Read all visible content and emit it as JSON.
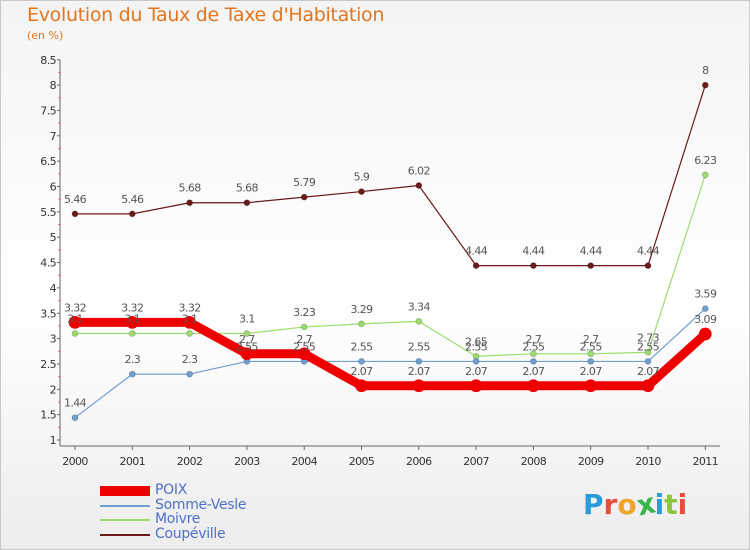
{
  "title": "Evolution du Taux de Taxe d'Habitation",
  "subtitle": "(en %)",
  "logo": {
    "text": "Proxiti",
    "letter_colors": [
      "#2a9ad8",
      "#e84c3d",
      "#f0a42a",
      "#3cb54a",
      "#2a9ad8",
      "#8cc63e",
      "#e84c3d"
    ]
  },
  "chart_data": {
    "type": "line",
    "title": "Evolution du Taux de Taxe d'Habitation",
    "subtitle": "(en %)",
    "x": [
      "2000",
      "2001",
      "2002",
      "2003",
      "2004",
      "2005",
      "2006",
      "2007",
      "2008",
      "2009",
      "2010",
      "2011"
    ],
    "yticks": [
      1,
      1.5,
      2,
      2.5,
      3,
      3.5,
      4,
      4.5,
      5,
      5.5,
      6,
      6.5,
      7,
      7.5,
      8,
      8.5
    ],
    "ylim": [
      1,
      8.5
    ],
    "grid": false,
    "legend_position": "bottom-left",
    "series": [
      {
        "name": "POIX",
        "color": "#ee0000",
        "values": [
          3.32,
          3.32,
          3.32,
          2.7,
          2.7,
          2.07,
          2.07,
          2.07,
          2.07,
          2.07,
          2.07,
          3.09
        ],
        "labels": [
          "3.32",
          "3.32",
          "3.32",
          "2.7",
          "2.7",
          "2.07",
          "2.07",
          "2.07",
          "2.07",
          "2.07",
          "2.07",
          "3.09"
        ]
      },
      {
        "name": "Somme-Vesle",
        "color": "#6e9fd0",
        "values": [
          1.44,
          2.3,
          2.3,
          2.55,
          2.55,
          2.55,
          2.55,
          2.55,
          2.55,
          2.55,
          2.55,
          3.59
        ],
        "labels": [
          "1.44",
          "2.3",
          "2.3",
          "2.55",
          "2.55",
          "2.55",
          "2.55",
          "2.55",
          "2.55",
          "2.55",
          "2.55",
          "3.59"
        ]
      },
      {
        "name": "Moivre",
        "color": "#9cdc6c",
        "values": [
          3.1,
          3.1,
          3.1,
          3.1,
          3.23,
          3.29,
          3.34,
          2.65,
          2.7,
          2.7,
          2.73,
          6.23
        ],
        "labels": [
          "3.1",
          "3.1",
          "3.1",
          "3.1",
          "3.23",
          "3.29",
          "3.34",
          "2.65",
          "2.7",
          "2.7",
          "2.73",
          "6.23"
        ]
      },
      {
        "name": "Coupéville",
        "color": "#6b1a1a",
        "values": [
          5.46,
          5.46,
          5.68,
          5.68,
          5.79,
          5.9,
          6.02,
          4.44,
          4.44,
          4.44,
          4.44,
          8
        ],
        "labels": [
          "5.46",
          "5.46",
          "5.68",
          "5.68",
          "5.79",
          "5.9",
          "6.02",
          "4.44",
          "4.44",
          "4.44",
          "4.44",
          "8"
        ]
      }
    ]
  }
}
